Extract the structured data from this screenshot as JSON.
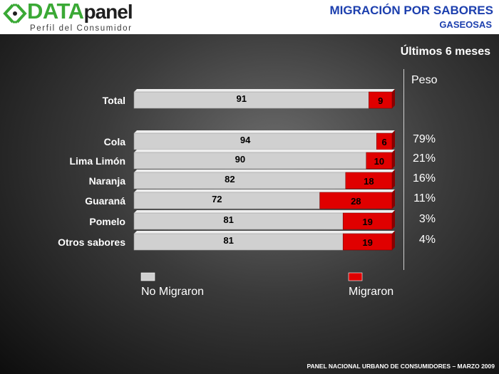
{
  "header": {
    "logo_primary": "DATA",
    "logo_secondary": "panel",
    "logo_tagline": "Perfil del Consumidor",
    "title": "MIGRACIÓN POR SABORES",
    "subtitle": "GASEOSAS"
  },
  "period": "Últimos 6 meses",
  "peso_header": "Peso",
  "footer": "PANEL NACIONAL URBANO DE CONSUMIDORES – MARZO 2009",
  "colors": {
    "no_migraron": "#d0d0d0",
    "migraron": "#e00000"
  },
  "chart_data": {
    "type": "bar",
    "orientation": "horizontal",
    "stacked": true,
    "categories": [
      "Total",
      "Cola",
      "Lima Limón",
      "Naranja",
      "Guaraná",
      "Pomelo",
      "Otros sabores"
    ],
    "series": [
      {
        "name": "No Migraron",
        "values": [
          91,
          94,
          90,
          82,
          72,
          81,
          81
        ]
      },
      {
        "name": "Migraron",
        "values": [
          9,
          6,
          10,
          18,
          28,
          19,
          19
        ]
      }
    ],
    "peso": [
      "",
      "79%",
      "21%",
      "16%",
      "11%",
      "3%",
      "4%"
    ],
    "xlim": [
      0,
      100
    ],
    "legend_position": "bottom"
  }
}
